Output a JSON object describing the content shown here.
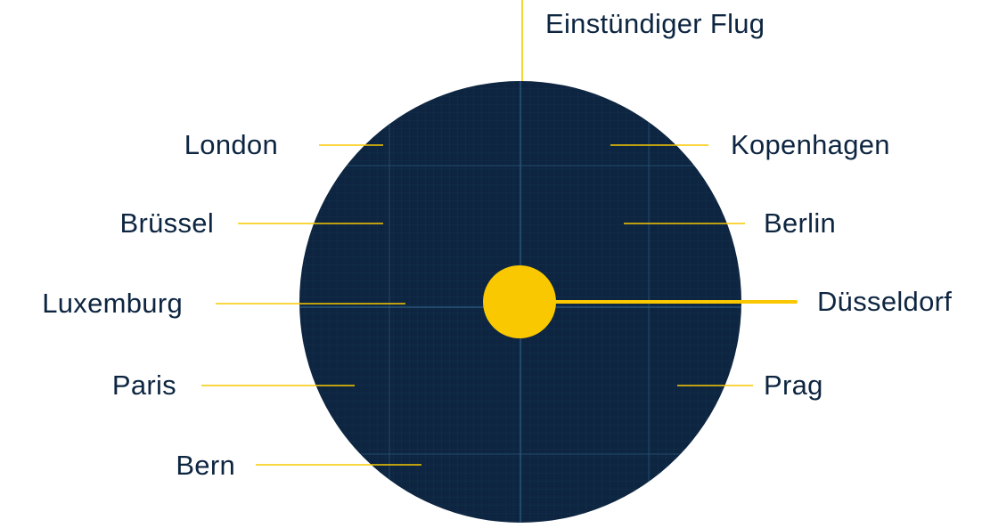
{
  "diagram": {
    "top_label": "Einstündiger Flug",
    "origin_label": "Düsseldorf",
    "cities_left": [
      "London",
      "Brüssel",
      "Luxemburg",
      "Paris",
      "Bern"
    ],
    "cities_right": [
      "Kopenhagen",
      "Berlin",
      "Prag"
    ]
  },
  "colors": {
    "circle": "#0d2540",
    "grid": "#1e4566",
    "accent": "#f9c800",
    "text": "#0d2540",
    "background": "#ffffff"
  }
}
